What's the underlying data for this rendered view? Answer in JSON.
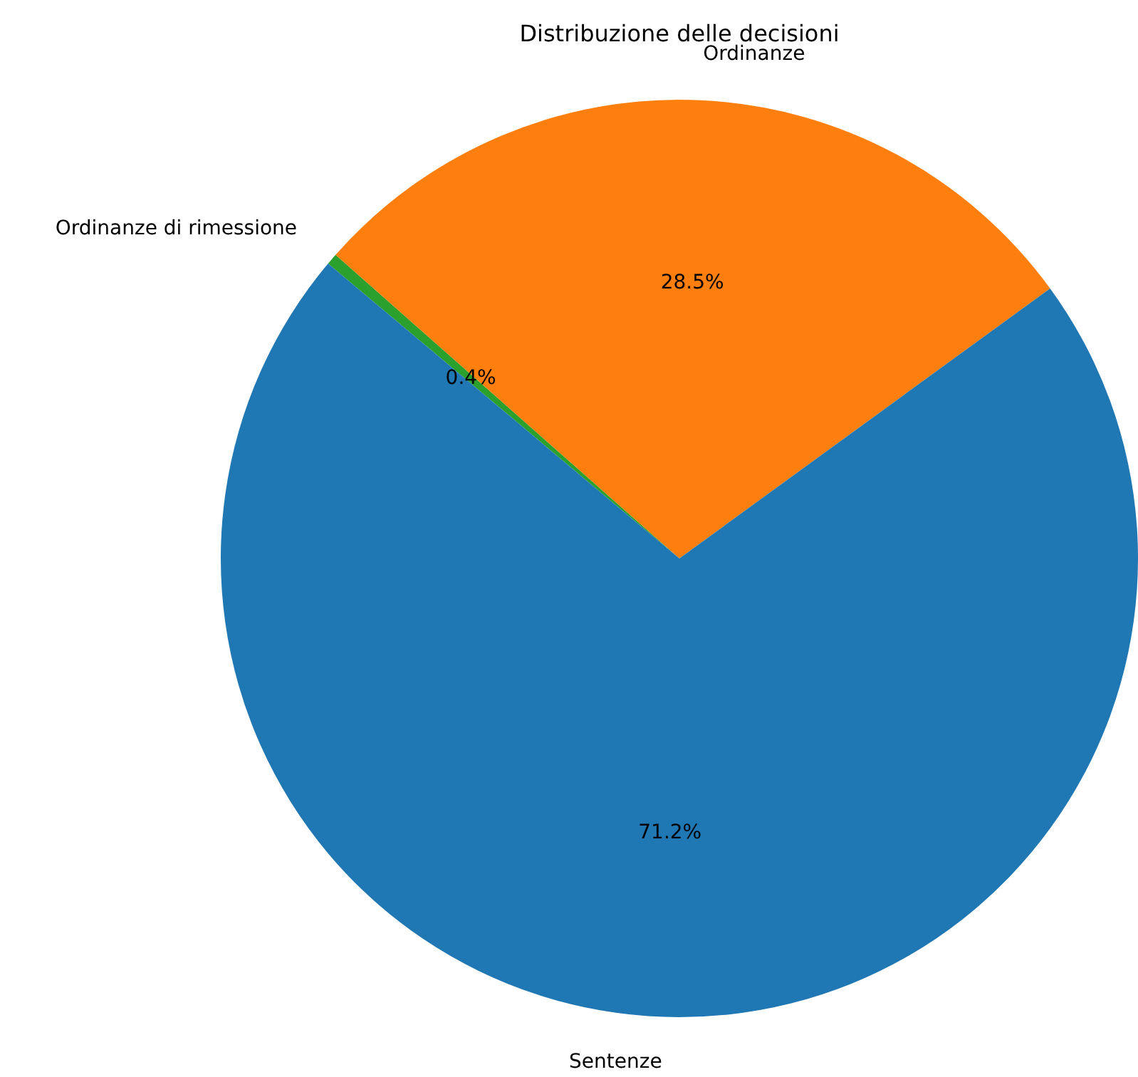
{
  "chart_data": {
    "type": "pie",
    "title": "Distribuzione delle decisioni",
    "categories": [
      "Sentenze",
      "Ordinanze",
      "Ordinanze di rimessione"
    ],
    "values": [
      71.2,
      28.5,
      0.4
    ],
    "colors": [
      "#1f77b4",
      "#ff7f0e",
      "#2ca02c"
    ],
    "value_labels": [
      "71.2%",
      "28.5%",
      "0.4%"
    ]
  }
}
